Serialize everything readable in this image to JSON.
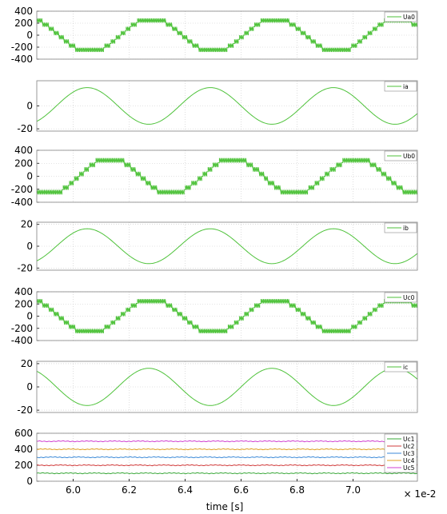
{
  "x_axis": {
    "label": "time [s]",
    "multiplier": "× 1e-2",
    "range": [
      5.87,
      7.23
    ],
    "ticks": [
      "6.0",
      "6.2",
      "6.4",
      "6.6",
      "6.8",
      "7.0"
    ],
    "tick_values": [
      6.0,
      6.2,
      6.4,
      6.6,
      6.8,
      7.0
    ]
  },
  "chart_data": [
    {
      "type": "line",
      "kind": "pwm",
      "xlabel": "time [s]",
      "ylim": [
        -400,
        400
      ],
      "yticks": [
        "400",
        "200",
        "0",
        "-200",
        "-400"
      ],
      "ytick_values": [
        400,
        200,
        0,
        -200,
        -400
      ],
      "color": "#4ec23a",
      "series": [
        {
          "name": "Ua0",
          "amplitude": 280,
          "period": 0.44,
          "peak_time": 6.28,
          "step": 70
        }
      ]
    },
    {
      "type": "line",
      "kind": "sine",
      "xlabel": "time [s]",
      "ylim": [
        -22,
        22
      ],
      "yticks": [
        "0",
        "-20"
      ],
      "ytick_values": [
        0,
        -20
      ],
      "color": "#4ec23a",
      "series": [
        {
          "name": "ia",
          "amplitude": 16,
          "period": 0.44,
          "peak_time": 6.49
        }
      ]
    },
    {
      "type": "line",
      "kind": "pwm",
      "xlabel": "time [s]",
      "ylim": [
        -400,
        400
      ],
      "yticks": [
        "400",
        "200",
        "0",
        "-200",
        "-400"
      ],
      "ytick_values": [
        400,
        200,
        0,
        -200,
        -400
      ],
      "color": "#4ec23a",
      "series": [
        {
          "name": "Ub0",
          "amplitude": 280,
          "period": 0.44,
          "peak_time": 6.57,
          "step": 70
        }
      ]
    },
    {
      "type": "line",
      "kind": "sine",
      "xlabel": "time [s]",
      "ylim": [
        -22,
        22
      ],
      "yticks": [
        "20",
        "0",
        "-20"
      ],
      "ytick_values": [
        20,
        0,
        -20
      ],
      "color": "#4ec23a",
      "series": [
        {
          "name": "ib",
          "amplitude": 16,
          "period": 0.44,
          "peak_time": 6.05
        }
      ]
    },
    {
      "type": "line",
      "kind": "pwm",
      "xlabel": "time [s]",
      "ylim": [
        -400,
        400
      ],
      "yticks": [
        "400",
        "200",
        "0",
        "-200",
        "-400"
      ],
      "ytick_values": [
        400,
        200,
        0,
        -200,
        -400
      ],
      "color": "#4ec23a",
      "series": [
        {
          "name": "Uc0",
          "amplitude": 280,
          "period": 0.44,
          "peak_time": 6.72,
          "step": 70
        }
      ]
    },
    {
      "type": "line",
      "kind": "sine",
      "xlabel": "time [s]",
      "ylim": [
        -22,
        22
      ],
      "yticks": [
        "20",
        "0",
        "-20"
      ],
      "ytick_values": [
        20,
        0,
        -20
      ],
      "color": "#4ec23a",
      "series": [
        {
          "name": "ic",
          "amplitude": 16,
          "period": 0.44,
          "peak_time": 6.27
        }
      ]
    },
    {
      "type": "line",
      "kind": "flat",
      "xlabel": "time [s]",
      "ylim": [
        0,
        600
      ],
      "yticks": [
        "600",
        "400",
        "200",
        "0"
      ],
      "ytick_values": [
        600,
        400,
        200,
        0
      ],
      "series": [
        {
          "name": "Uc1",
          "level": 100,
          "color": "#3aa83a"
        },
        {
          "name": "Uc2",
          "level": 200,
          "color": "#d23c3c"
        },
        {
          "name": "Uc3",
          "level": 300,
          "color": "#3c8ad8"
        },
        {
          "name": "Uc4",
          "level": 400,
          "color": "#e0a020"
        },
        {
          "name": "Uc5",
          "level": 500,
          "color": "#d040d0"
        }
      ]
    }
  ]
}
